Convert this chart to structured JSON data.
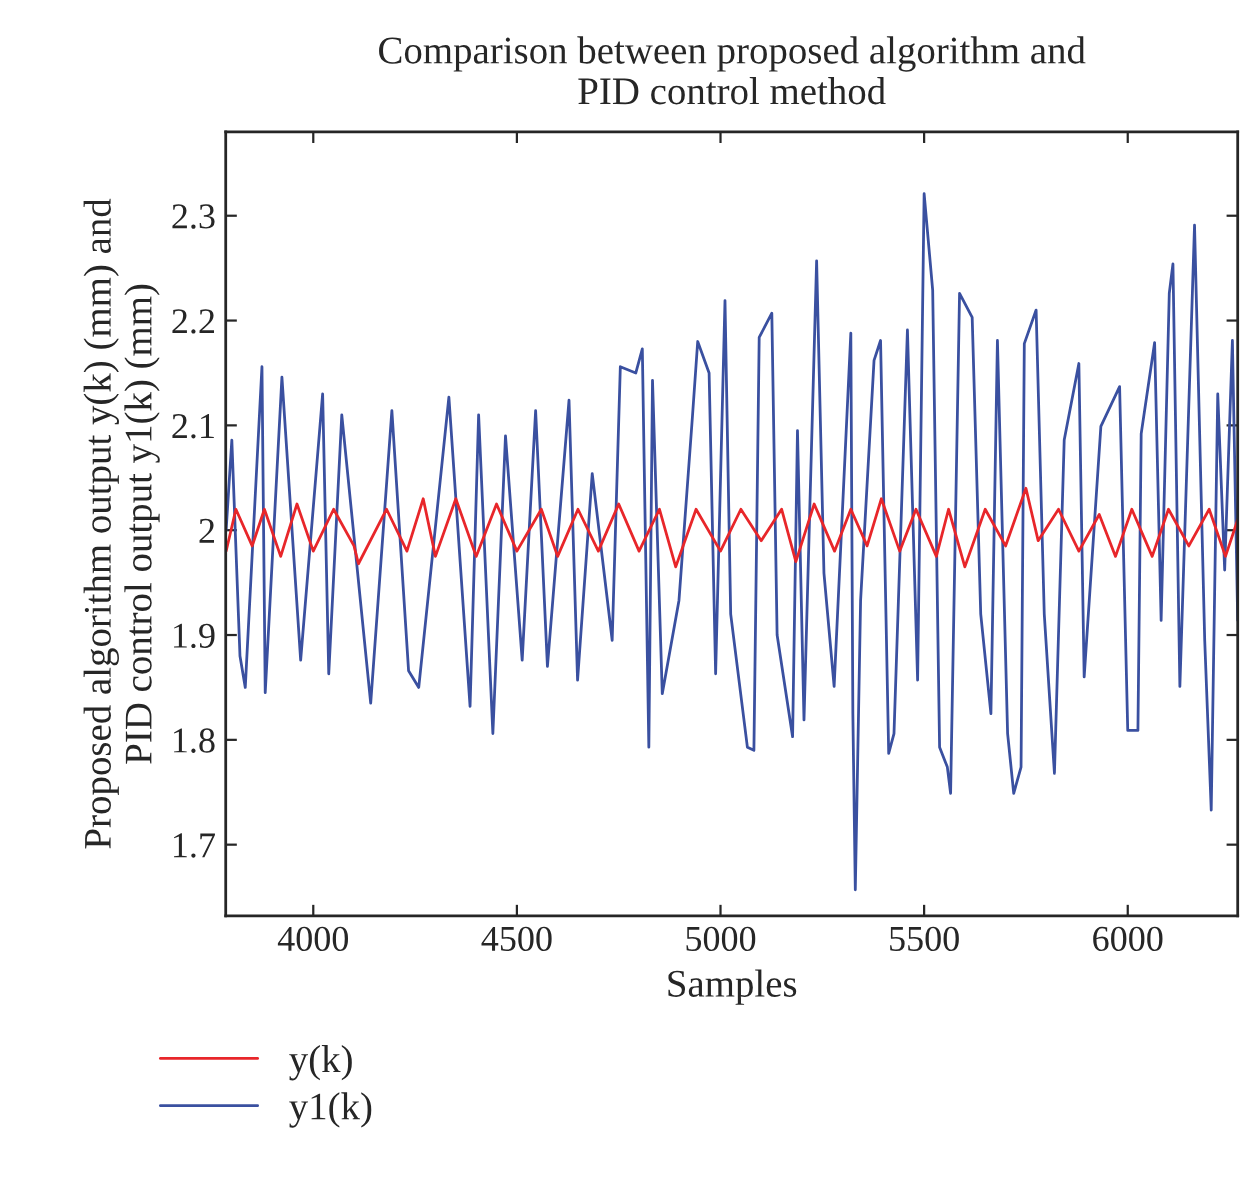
{
  "chart_data": {
    "type": "line",
    "title": "Comparison between proposed algorithm and\nPID control method",
    "xlabel": "Samples",
    "ylabel": "Proposed algorithm output y(k) (mm) and\nPID control output y1(k) (mm)",
    "xlim": [
      3785,
      6270
    ],
    "xticks": [
      4000,
      4500,
      5000,
      5500,
      6000
    ],
    "ylim": [
      1.632,
      2.38
    ],
    "yticks": [
      1.7,
      1.8,
      1.9,
      2,
      2.1,
      2.2,
      2.3
    ],
    "legend": "bottom left",
    "line_style": "solid",
    "series": [
      {
        "name": "y(k)",
        "color": "#e8262a",
        "x": [
          3786,
          3810,
          3850,
          3880,
          3920,
          3960,
          4000,
          4050,
          4100,
          4111,
          4180,
          4230,
          4270,
          4300,
          4350,
          4400,
          4450,
          4500,
          4560,
          4600,
          4650,
          4700,
          4750,
          4800,
          4850,
          4890,
          4940,
          5000,
          5050,
          5100,
          5150,
          5185,
          5230,
          5280,
          5320,
          5360,
          5395,
          5440,
          5480,
          5530,
          5560,
          5600,
          5650,
          5700,
          5750,
          5780,
          5830,
          5880,
          5930,
          5970,
          6010,
          6060,
          6100,
          6150,
          6200,
          6240,
          6270
        ],
        "values": [
          1.98,
          2.02,
          1.985,
          2.02,
          1.975,
          2.025,
          1.98,
          2.02,
          1.985,
          1.968,
          2.02,
          1.98,
          2.03,
          1.975,
          2.03,
          1.975,
          2.025,
          1.98,
          2.02,
          1.975,
          2.02,
          1.98,
          2.025,
          1.98,
          2.02,
          1.965,
          2.02,
          1.98,
          2.02,
          1.99,
          2.02,
          1.97,
          2.025,
          1.98,
          2.02,
          1.985,
          2.03,
          1.98,
          2.02,
          1.975,
          2.02,
          1.965,
          2.02,
          1.985,
          2.04,
          1.99,
          2.02,
          1.98,
          2.015,
          1.975,
          2.02,
          1.975,
          2.02,
          1.985,
          2.02,
          1.975,
          2.01
        ]
      },
      {
        "name": "y1(k)",
        "color": "#3a50a0",
        "x": [
          3786,
          3800,
          3820,
          3833,
          3874,
          3882,
          3923,
          3969,
          4023,
          4038,
          4070,
          4141,
          4193,
          4234,
          4259,
          4333,
          4385,
          4406,
          4441,
          4472,
          4513,
          4546,
          4575,
          4628,
          4649,
          4685,
          4734,
          4754,
          4792,
          4808,
          4824,
          4833,
          4857,
          4898,
          4931,
          4944,
          4972,
          4988,
          5011,
          5025,
          5066,
          5082,
          5095,
          5126,
          5139,
          5177,
          5189,
          5205,
          5236,
          5254,
          5279,
          5320,
          5325,
          5331,
          5344,
          5377,
          5393,
          5413,
          5426,
          5459,
          5484,
          5500,
          5521,
          5538,
          5557,
          5565,
          5587,
          5618,
          5639,
          5664,
          5680,
          5705,
          5720,
          5738,
          5746,
          5775,
          5795,
          5820,
          5844,
          5880,
          5893,
          5934,
          5980,
          6000,
          6025,
          6033,
          6066,
          6082,
          6102,
          6111,
          6128,
          6164,
          6189,
          6205,
          6221,
          6238,
          6257,
          6270
        ],
        "values": [
          2.0,
          2.086,
          1.88,
          1.85,
          2.156,
          1.845,
          2.146,
          1.876,
          2.13,
          1.863,
          2.11,
          1.835,
          2.114,
          1.866,
          1.85,
          2.127,
          1.832,
          2.11,
          1.806,
          2.09,
          1.876,
          2.114,
          1.87,
          2.124,
          1.857,
          2.054,
          1.895,
          2.156,
          2.15,
          2.173,
          1.793,
          2.143,
          1.844,
          1.933,
          2.108,
          2.18,
          2.15,
          1.863,
          2.219,
          1.92,
          1.793,
          1.79,
          2.184,
          2.207,
          1.9,
          1.803,
          2.095,
          1.819,
          2.257,
          1.959,
          1.851,
          2.188,
          1.825,
          1.657,
          1.933,
          2.162,
          2.181,
          1.787,
          1.806,
          2.191,
          1.857,
          2.321,
          2.229,
          1.793,
          1.774,
          1.749,
          2.226,
          2.203,
          1.92,
          1.825,
          2.181,
          1.806,
          1.749,
          1.774,
          2.178,
          2.21,
          1.92,
          1.768,
          2.086,
          2.159,
          1.86,
          2.099,
          2.137,
          1.809,
          1.809,
          2.092,
          2.179,
          1.914,
          2.226,
          2.254,
          1.851,
          2.291,
          1.895,
          1.733,
          2.13,
          1.962,
          2.181,
          1.914
        ]
      }
    ]
  }
}
